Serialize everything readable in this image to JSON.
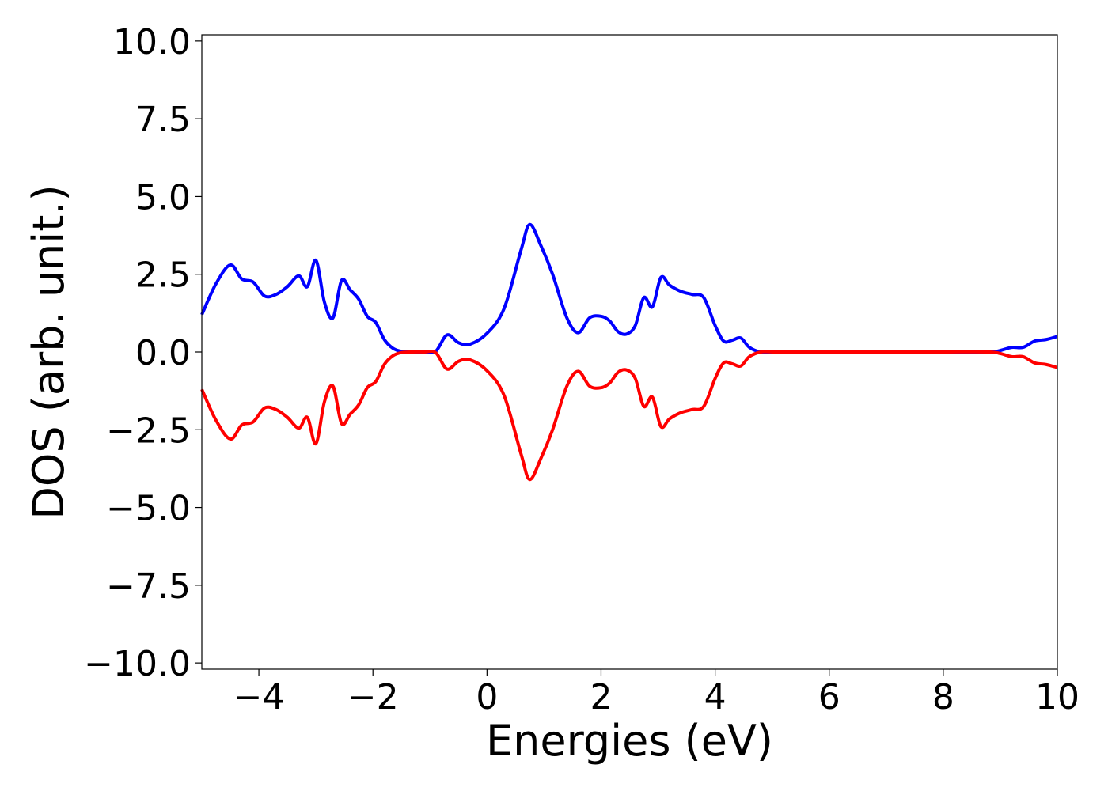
{
  "chart_data": {
    "type": "line",
    "xlabel": "Energies (eV)",
    "ylabel": "DOS (arb. unit.)",
    "xlim": [
      -5,
      10
    ],
    "ylim": [
      -10.2,
      10.2
    ],
    "xticks": [
      -4,
      -2,
      0,
      2,
      4,
      6,
      8,
      10
    ],
    "yticks": [
      -10.0,
      -7.5,
      -5.0,
      -2.5,
      0.0,
      2.5,
      5.0,
      7.5,
      10.0
    ],
    "xtick_labels": [
      "−4",
      "−2",
      "0",
      "2",
      "4",
      "6",
      "8",
      "10"
    ],
    "ytick_labels": [
      "−10.0",
      "−7.5",
      "−5.0",
      "−2.5",
      "0.0",
      "2.5",
      "5.0",
      "7.5",
      "10.0"
    ],
    "grid": false,
    "series": [
      {
        "color": "#0000ff",
        "x": [
          -5.0,
          -4.75,
          -4.5,
          -4.3,
          -4.1,
          -3.9,
          -3.7,
          -3.5,
          -3.3,
          -3.15,
          -3.0,
          -2.85,
          -2.7,
          -2.55,
          -2.4,
          -2.25,
          -2.1,
          -1.95,
          -1.8,
          -1.65,
          -1.5,
          -1.3,
          -1.1,
          -0.9,
          -0.7,
          -0.5,
          -0.3,
          0.0,
          0.3,
          0.6,
          0.75,
          0.95,
          1.15,
          1.4,
          1.6,
          1.8,
          2.0,
          2.15,
          2.3,
          2.45,
          2.6,
          2.75,
          2.9,
          3.05,
          3.2,
          3.4,
          3.6,
          3.8,
          4.0,
          4.15,
          4.3,
          4.45,
          4.6,
          4.8,
          5.0,
          5.15,
          5.35,
          5.6,
          5.75,
          5.9,
          6.1,
          6.3,
          6.5,
          6.65,
          6.8,
          7.0,
          7.3,
          8.0,
          8.8,
          9.0,
          9.2,
          9.4,
          9.6,
          9.8,
          10.0
        ],
        "y": [
          1.2,
          2.2,
          2.8,
          2.35,
          2.25,
          1.8,
          1.85,
          2.1,
          2.45,
          2.1,
          2.95,
          1.6,
          1.1,
          2.3,
          2.0,
          1.7,
          1.15,
          0.95,
          0.4,
          0.12,
          0.02,
          0.0,
          0.0,
          0.02,
          0.55,
          0.3,
          0.25,
          0.6,
          1.4,
          3.3,
          4.1,
          3.4,
          2.5,
          1.1,
          0.62,
          1.1,
          1.15,
          1.0,
          0.65,
          0.58,
          0.85,
          1.75,
          1.45,
          2.4,
          2.15,
          1.95,
          1.85,
          1.75,
          0.85,
          0.35,
          0.38,
          0.45,
          0.15,
          0.0,
          0.0,
          0.0,
          0.0,
          0.0,
          0.0,
          0.0,
          0.0,
          0.0,
          0.0,
          0.0,
          0.0,
          0.0,
          0.0,
          0.0,
          0.0,
          0.05,
          0.15,
          0.15,
          0.35,
          0.4,
          0.5
        ]
      },
      {
        "color": "#ff0000",
        "x": [
          -5.0,
          -4.75,
          -4.5,
          -4.3,
          -4.1,
          -3.9,
          -3.7,
          -3.5,
          -3.3,
          -3.15,
          -3.0,
          -2.85,
          -2.7,
          -2.55,
          -2.4,
          -2.25,
          -2.1,
          -1.95,
          -1.8,
          -1.65,
          -1.5,
          -1.3,
          -1.1,
          -0.9,
          -0.7,
          -0.5,
          -0.3,
          0.0,
          0.3,
          0.6,
          0.75,
          0.95,
          1.15,
          1.4,
          1.6,
          1.8,
          2.0,
          2.15,
          2.3,
          2.45,
          2.6,
          2.75,
          2.9,
          3.05,
          3.2,
          3.4,
          3.6,
          3.8,
          4.0,
          4.15,
          4.3,
          4.45,
          4.6,
          4.8,
          5.0,
          5.15,
          5.35,
          5.6,
          5.75,
          5.9,
          6.1,
          6.3,
          6.5,
          6.65,
          6.8,
          7.0,
          7.3,
          8.0,
          8.8,
          9.0,
          9.2,
          9.4,
          9.6,
          9.8,
          10.0
        ],
        "y": [
          -1.2,
          -2.2,
          -2.8,
          -2.35,
          -2.25,
          -1.8,
          -1.85,
          -2.1,
          -2.45,
          -2.1,
          -2.95,
          -1.6,
          -1.1,
          -2.3,
          -2.0,
          -1.7,
          -1.15,
          -0.95,
          -0.4,
          -0.12,
          -0.02,
          0.0,
          0.0,
          -0.02,
          -0.55,
          -0.3,
          -0.25,
          -0.6,
          -1.4,
          -3.3,
          -4.1,
          -3.4,
          -2.5,
          -1.1,
          -0.62,
          -1.1,
          -1.15,
          -1.0,
          -0.65,
          -0.58,
          -0.85,
          -1.75,
          -1.45,
          -2.4,
          -2.15,
          -1.95,
          -1.85,
          -1.75,
          -0.85,
          -0.35,
          -0.38,
          -0.45,
          -0.15,
          0.0,
          0.0,
          0.0,
          0.0,
          0.0,
          0.0,
          0.0,
          0.0,
          0.0,
          0.0,
          0.0,
          0.0,
          0.0,
          0.0,
          0.0,
          0.0,
          -0.05,
          -0.15,
          -0.15,
          -0.35,
          -0.4,
          -0.5
        ]
      }
    ]
  }
}
